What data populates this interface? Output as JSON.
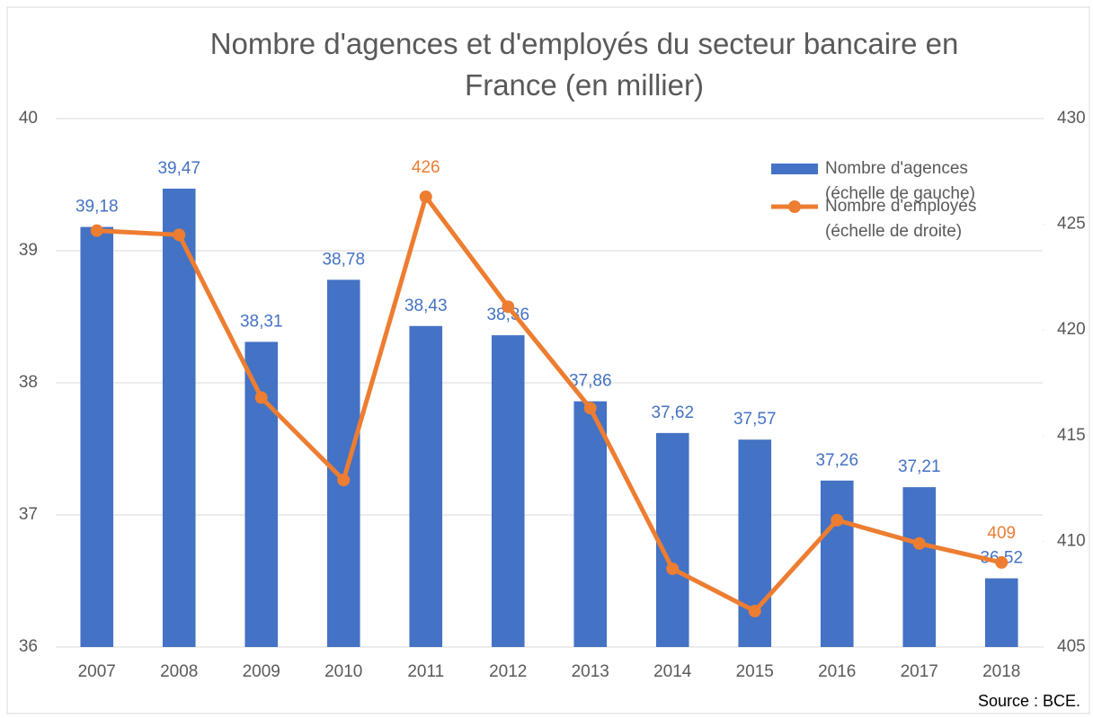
{
  "chart_data": {
    "type": "bar",
    "title": "Nombre d'agences et d'employés du secteur bancaire en France (en millier)",
    "categories": [
      "2007",
      "2008",
      "2009",
      "2010",
      "2011",
      "2012",
      "2013",
      "2014",
      "2015",
      "2016",
      "2017",
      "2018"
    ],
    "series": [
      {
        "name": "Nombre d'agences (échelle de gauche)",
        "type": "bar",
        "color": "#4472c4",
        "values": [
          39.18,
          39.47,
          38.31,
          38.78,
          38.43,
          38.36,
          37.86,
          37.62,
          37.57,
          37.26,
          37.21,
          36.52
        ],
        "value_labels": [
          "39,18",
          "39,47",
          "38,31",
          "38,78",
          "38,43",
          "38,36",
          "37,86",
          "37,62",
          "37,57",
          "37,26",
          "37,21",
          "36,52"
        ]
      },
      {
        "name": "Nombre d'employés (échelle de droite)",
        "type": "line",
        "axis": "y2",
        "color": "#ed7d31",
        "values": [
          424.7,
          424.5,
          416.8,
          412.9,
          426.3,
          421.1,
          416.3,
          408.7,
          406.7,
          411.0,
          409.9,
          409.0
        ],
        "value_labels": [
          null,
          null,
          null,
          null,
          "426",
          null,
          null,
          null,
          null,
          null,
          null,
          "409"
        ]
      }
    ],
    "ylim": [
      36,
      40
    ],
    "yticks": [
      36,
      37,
      38,
      39,
      40
    ],
    "y2lim": [
      405,
      430
    ],
    "y2ticks": [
      405,
      410,
      415,
      420,
      425,
      430
    ],
    "grid": true,
    "legend": "top-right",
    "annotations": [
      "Source : BCE."
    ]
  }
}
